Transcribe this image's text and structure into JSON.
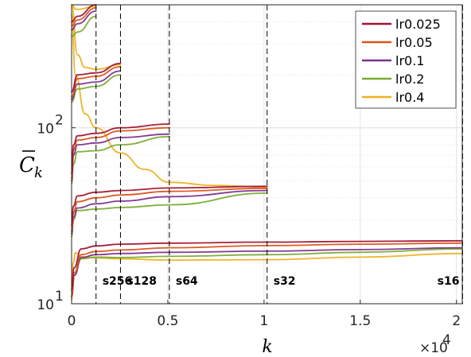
{
  "chart_data": {
    "type": "line",
    "xlabel": "k",
    "ylabel": "C̄_k",
    "x_multiplier_label": "×10",
    "x_multiplier_exp": "4",
    "xlim": [
      0,
      20300
    ],
    "ylim": [
      10,
      500
    ],
    "yscale": "log",
    "grid": true,
    "legend_position": "top-right",
    "x_ticks": [
      {
        "value": 0,
        "label": "0"
      },
      {
        "value": 5000,
        "label": "0.5"
      },
      {
        "value": 10000,
        "label": "1"
      },
      {
        "value": 15000,
        "label": "1.5"
      },
      {
        "value": 20000,
        "label": "2"
      }
    ],
    "y_ticks": [
      {
        "value": 10,
        "label": "10",
        "sup": "1"
      },
      {
        "value": 100,
        "label": "10",
        "sup": "2"
      }
    ],
    "vlines": [
      {
        "x": 1270,
        "label": "s256"
      },
      {
        "x": 2540,
        "label": "s128"
      },
      {
        "x": 5080,
        "label": "s64"
      },
      {
        "x": 10160,
        "label": "s32"
      },
      {
        "x": 20320,
        "label": "s16"
      }
    ],
    "series": [
      {
        "name": "lr0.025",
        "color": "#A2142F"
      },
      {
        "name": "lr0.05",
        "color": "#D95319"
      },
      {
        "name": "lr0.1",
        "color": "#7E2F8E"
      },
      {
        "name": "lr0.2",
        "color": "#77AC30"
      },
      {
        "name": "lr0.4",
        "color": "#EDB120"
      }
    ],
    "segments": [
      {
        "series": "lr0.025",
        "points": [
          [
            0,
            12
          ],
          [
            130,
            16
          ],
          [
            500,
            20.5
          ],
          [
            1270,
            21.3
          ],
          [
            2540,
            21.8
          ],
          [
            5080,
            22.1
          ],
          [
            10160,
            22.4
          ],
          [
            15000,
            22.6
          ],
          [
            20300,
            22.8
          ]
        ]
      },
      {
        "series": "lr0.05",
        "points": [
          [
            0,
            11
          ],
          [
            150,
            15
          ],
          [
            500,
            19
          ],
          [
            1270,
            19.8
          ],
          [
            2540,
            20.2
          ],
          [
            5080,
            20.8
          ],
          [
            10160,
            21.4
          ],
          [
            15000,
            21.8
          ],
          [
            20300,
            22.1
          ]
        ]
      },
      {
        "series": "lr0.1",
        "points": [
          [
            0,
            11
          ],
          [
            150,
            14.5
          ],
          [
            500,
            18.3
          ],
          [
            1270,
            19.0
          ],
          [
            2540,
            19.3
          ],
          [
            5080,
            19.6
          ],
          [
            10160,
            19.9
          ],
          [
            15000,
            20.3
          ],
          [
            20300,
            20.8
          ]
        ]
      },
      {
        "series": "lr0.2",
        "points": [
          [
            0,
            11
          ],
          [
            150,
            14.5
          ],
          [
            500,
            18
          ],
          [
            1270,
            18.4
          ],
          [
            2540,
            18.3
          ],
          [
            5080,
            18.6
          ],
          [
            10160,
            19.0
          ],
          [
            15000,
            19.6
          ],
          [
            20300,
            20.5
          ]
        ]
      },
      {
        "series": "lr0.4",
        "points": [
          [
            0,
            10.5
          ],
          [
            80,
            17
          ],
          [
            200,
            19.5
          ],
          [
            500,
            18.5
          ],
          [
            1270,
            18.2
          ],
          [
            2540,
            18.0
          ],
          [
            5080,
            17.7
          ],
          [
            10160,
            17.8
          ],
          [
            15000,
            18.4
          ],
          [
            20300,
            19.3
          ]
        ]
      },
      {
        "series": "lr0.025",
        "points": [
          [
            0,
            28
          ],
          [
            100,
            36
          ],
          [
            300,
            41
          ],
          [
            1270,
            43
          ],
          [
            2540,
            44
          ],
          [
            5080,
            45.5
          ],
          [
            10160,
            46.5
          ]
        ]
      },
      {
        "series": "lr0.05",
        "points": [
          [
            0,
            26
          ],
          [
            100,
            33
          ],
          [
            300,
            38
          ],
          [
            1270,
            40
          ],
          [
            2540,
            41.5
          ],
          [
            5080,
            43.5
          ],
          [
            10160,
            45.3
          ]
        ]
      },
      {
        "series": "lr0.1",
        "points": [
          [
            0,
            25
          ],
          [
            100,
            31
          ],
          [
            300,
            35
          ],
          [
            1270,
            37
          ],
          [
            2540,
            38.3
          ],
          [
            5080,
            40.6
          ],
          [
            10160,
            44
          ]
        ]
      },
      {
        "series": "lr0.2",
        "points": [
          [
            0,
            24
          ],
          [
            100,
            30
          ],
          [
            300,
            33.8
          ],
          [
            1270,
            34.5
          ],
          [
            2540,
            35.2
          ],
          [
            5080,
            36.5
          ],
          [
            10160,
            42.5
          ]
        ]
      },
      {
        "series": "lr0.4",
        "points": [
          [
            0,
            440
          ],
          [
            200,
            200
          ],
          [
            700,
            120
          ],
          [
            1270,
            100
          ],
          [
            2540,
            72
          ],
          [
            3800,
            58
          ],
          [
            5080,
            49
          ],
          [
            7500,
            47
          ],
          [
            10160,
            46
          ]
        ]
      },
      {
        "series": "lr0.025",
        "points": [
          [
            0,
            55
          ],
          [
            100,
            80
          ],
          [
            300,
            90
          ],
          [
            1270,
            93
          ],
          [
            2540,
            100
          ],
          [
            5080,
            105
          ]
        ]
      },
      {
        "series": "lr0.05",
        "points": [
          [
            0,
            52
          ],
          [
            100,
            75
          ],
          [
            300,
            85
          ],
          [
            1270,
            88
          ],
          [
            2540,
            96
          ],
          [
            5080,
            100
          ]
        ]
      },
      {
        "series": "lr0.1",
        "points": [
          [
            0,
            50
          ],
          [
            100,
            70
          ],
          [
            300,
            80
          ],
          [
            1270,
            82
          ],
          [
            2540,
            88
          ],
          [
            5080,
            92
          ]
        ]
      },
      {
        "series": "lr0.2",
        "points": [
          [
            0,
            48
          ],
          [
            100,
            62
          ],
          [
            300,
            73
          ],
          [
            1270,
            74
          ],
          [
            2540,
            80
          ],
          [
            5080,
            89
          ]
        ]
      },
      {
        "series": "lr0.025",
        "points": [
          [
            0,
            160
          ],
          [
            300,
            200
          ],
          [
            1270,
            205
          ],
          [
            2540,
            232
          ]
        ]
      },
      {
        "series": "lr0.05",
        "points": [
          [
            0,
            150
          ],
          [
            300,
            190
          ],
          [
            1270,
            196
          ],
          [
            2540,
            222
          ]
        ]
      },
      {
        "series": "lr0.1",
        "points": [
          [
            0,
            145
          ],
          [
            300,
            177
          ],
          [
            1270,
            182
          ],
          [
            2540,
            210
          ]
        ]
      },
      {
        "series": "lr0.2",
        "points": [
          [
            0,
            140
          ],
          [
            300,
            166
          ],
          [
            1270,
            172
          ],
          [
            2540,
            200
          ]
        ]
      },
      {
        "series": "lr0.4",
        "points": [
          [
            0,
            500
          ],
          [
            300,
            260
          ],
          [
            700,
            220
          ],
          [
            1270,
            215
          ],
          [
            2540,
            228
          ]
        ]
      },
      {
        "series": "lr0.025",
        "points": [
          [
            0,
            400
          ],
          [
            300,
            430
          ],
          [
            1270,
            500
          ]
        ]
      },
      {
        "series": "lr0.05",
        "points": [
          [
            0,
            380
          ],
          [
            300,
            410
          ],
          [
            1270,
            480
          ]
        ]
      },
      {
        "series": "lr0.1",
        "points": [
          [
            0,
            360
          ],
          [
            300,
            390
          ],
          [
            1270,
            460
          ]
        ]
      },
      {
        "series": "lr0.2",
        "points": [
          [
            0,
            330
          ],
          [
            300,
            350
          ],
          [
            1270,
            430
          ]
        ]
      },
      {
        "series": "lr0.4",
        "points": [
          [
            0,
            500
          ],
          [
            250,
            470
          ],
          [
            1270,
            490
          ]
        ]
      }
    ]
  }
}
